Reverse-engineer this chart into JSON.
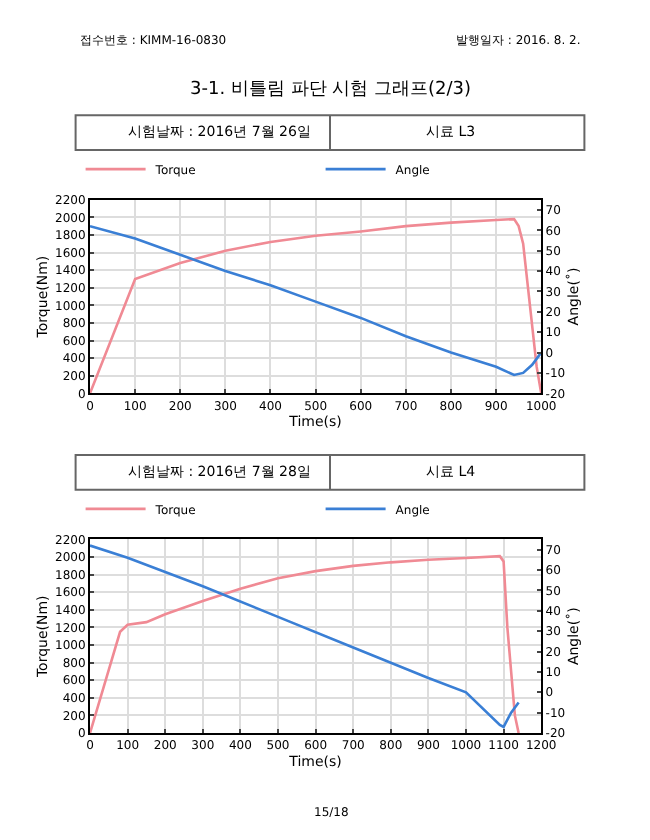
{
  "chart_data": [
    {
      "type": "line",
      "title": "시험날짜 : 2016년 7월 26일",
      "subtitle": "시료 L3",
      "xlabel": "Time(s)",
      "ylabel": "Torque(Nm)",
      "y2label": "Angle(˚)",
      "annotations": [
        "접수번호 : KIMM-16-0830",
        "발행일자 : 2016. 8. 2.",
        "3-1. 비틀림 파단 시험 그래프(2/3)",
        "15/18"
      ],
      "xlim": [
        0,
        1000
      ],
      "xticks": [
        0,
        100,
        200,
        300,
        400,
        500,
        600,
        700,
        800,
        900,
        1000
      ],
      "ylim": [
        0,
        2200
      ],
      "yticks": [
        0,
        200,
        400,
        600,
        800,
        1000,
        1200,
        1400,
        1600,
        1800,
        2000,
        2200
      ],
      "y2lim": [
        -20,
        75
      ],
      "y2ticks": [
        -20,
        -10,
        0,
        10,
        20,
        30,
        40,
        50,
        60,
        70
      ],
      "grid": true,
      "legend": "top",
      "line_style": "solid",
      "series": [
        {
          "name": "Torque",
          "color": "#f08a94",
          "x": [
            0,
            100,
            200,
            300,
            400,
            500,
            600,
            700,
            800,
            900,
            940,
            950,
            960,
            990,
            1000
          ],
          "values": [
            0,
            1300,
            1480,
            1620,
            1720,
            1790,
            1840,
            1900,
            1940,
            1970,
            1980,
            1900,
            1700,
            300,
            0
          ]
        },
        {
          "name": "Angle",
          "color": "#3a7fd5",
          "axis": "y2",
          "x": [
            0,
            100,
            200,
            300,
            400,
            500,
            600,
            700,
            800,
            900,
            940,
            960,
            980,
            1000
          ],
          "values": [
            62,
            56,
            48,
            40,
            33,
            25,
            17,
            8,
            0,
            -7,
            -11,
            -10,
            -6,
            0
          ]
        }
      ]
    },
    {
      "type": "line",
      "title": "시험날짜 : 2016년 7월 28일",
      "subtitle": "시료 L4",
      "xlabel": "Time(s)",
      "ylabel": "Torque(Nm)",
      "y2label": "Angle(˚)",
      "xlim": [
        0,
        1200
      ],
      "xticks": [
        0,
        100,
        200,
        300,
        400,
        500,
        600,
        700,
        800,
        900,
        1000,
        1100,
        1200
      ],
      "ylim": [
        0,
        2200
      ],
      "yticks": [
        0,
        200,
        400,
        600,
        800,
        1000,
        1200,
        1400,
        1600,
        1800,
        2000,
        2200
      ],
      "y2lim": [
        -20,
        75
      ],
      "y2ticks": [
        -20,
        -10,
        0,
        10,
        20,
        30,
        40,
        50,
        60,
        70
      ],
      "grid": true,
      "legend": "top",
      "line_style": "solid",
      "series": [
        {
          "name": "Torque",
          "color": "#f08a94",
          "x": [
            0,
            80,
            100,
            150,
            200,
            300,
            400,
            500,
            600,
            700,
            800,
            900,
            1000,
            1090,
            1100,
            1110,
            1130,
            1140
          ],
          "values": [
            0,
            1150,
            1230,
            1260,
            1350,
            1500,
            1640,
            1760,
            1840,
            1900,
            1940,
            1970,
            1990,
            2010,
            1950,
            1200,
            200,
            0
          ]
        },
        {
          "name": "Angle",
          "color": "#3a7fd5",
          "axis": "y2",
          "x": [
            0,
            100,
            300,
            500,
            700,
            900,
            1000,
            1090,
            1100,
            1120,
            1140
          ],
          "values": [
            72,
            66,
            52,
            37,
            22,
            7,
            0,
            -16,
            -17,
            -10,
            -5
          ]
        }
      ]
    }
  ]
}
